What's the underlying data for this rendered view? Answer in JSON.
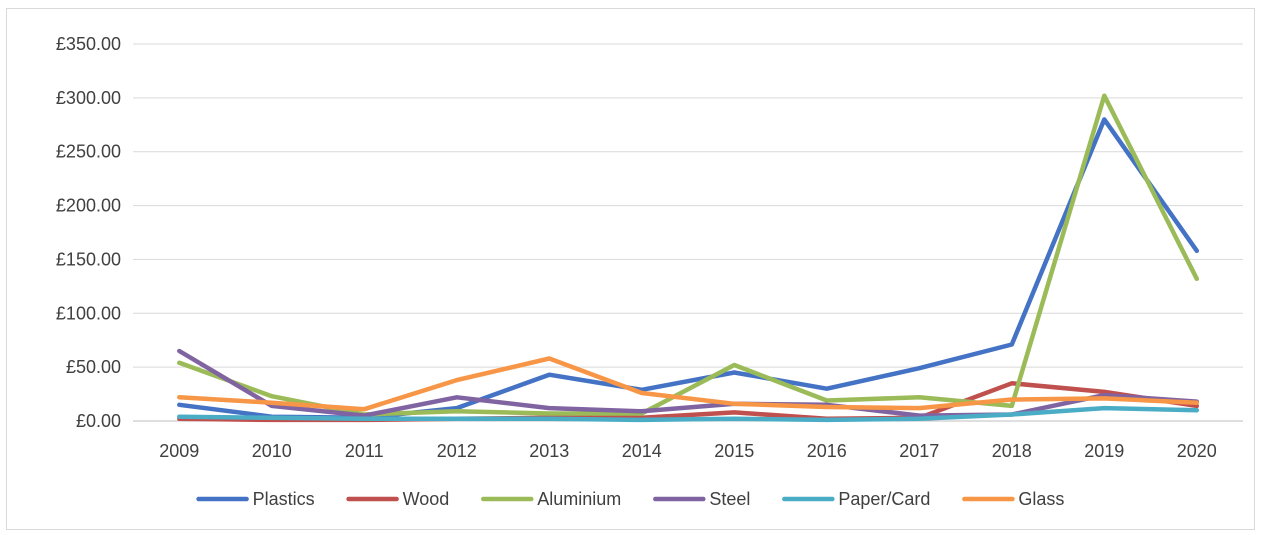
{
  "chart_data": {
    "type": "line",
    "title": "",
    "xlabel": "",
    "ylabel": "",
    "categories": [
      "2009",
      "2010",
      "2011",
      "2012",
      "2013",
      "2014",
      "2015",
      "2016",
      "2017",
      "2018",
      "2019",
      "2020"
    ],
    "ylim": [
      0,
      350
    ],
    "y_ticks": [
      0,
      50,
      100,
      150,
      200,
      250,
      300,
      350
    ],
    "y_tick_labels": [
      "£0.00",
      "£50.00",
      "£100.00",
      "£150.00",
      "£200.00",
      "£250.00",
      "£300.00",
      "£350.00"
    ],
    "grid": "horizontal",
    "legend_position": "bottom",
    "series": [
      {
        "name": "Plastics",
        "color": "#4472c4",
        "values": [
          15,
          4,
          3,
          12,
          43,
          29,
          45,
          30,
          49,
          71,
          280,
          158
        ]
      },
      {
        "name": "Wood",
        "color": "#c0504d",
        "values": [
          2,
          1,
          1,
          2,
          3,
          3,
          8,
          2,
          3,
          35,
          27,
          14
        ]
      },
      {
        "name": "Aluminium",
        "color": "#9bbb59",
        "values": [
          54,
          23,
          6,
          9,
          7,
          7,
          52,
          19,
          22,
          14,
          302,
          132
        ]
      },
      {
        "name": "Steel",
        "color": "#8064a2",
        "values": [
          65,
          14,
          5,
          22,
          12,
          9,
          16,
          15,
          5,
          6,
          24,
          18
        ]
      },
      {
        "name": "Paper/Card",
        "color": "#4bacc6",
        "values": [
          4,
          3,
          2,
          2,
          2,
          1,
          2,
          1,
          2,
          6,
          12,
          10
        ]
      },
      {
        "name": "Glass",
        "color": "#f79646",
        "values": [
          22,
          17,
          11,
          38,
          58,
          26,
          16,
          13,
          12,
          20,
          21,
          17
        ]
      }
    ]
  }
}
